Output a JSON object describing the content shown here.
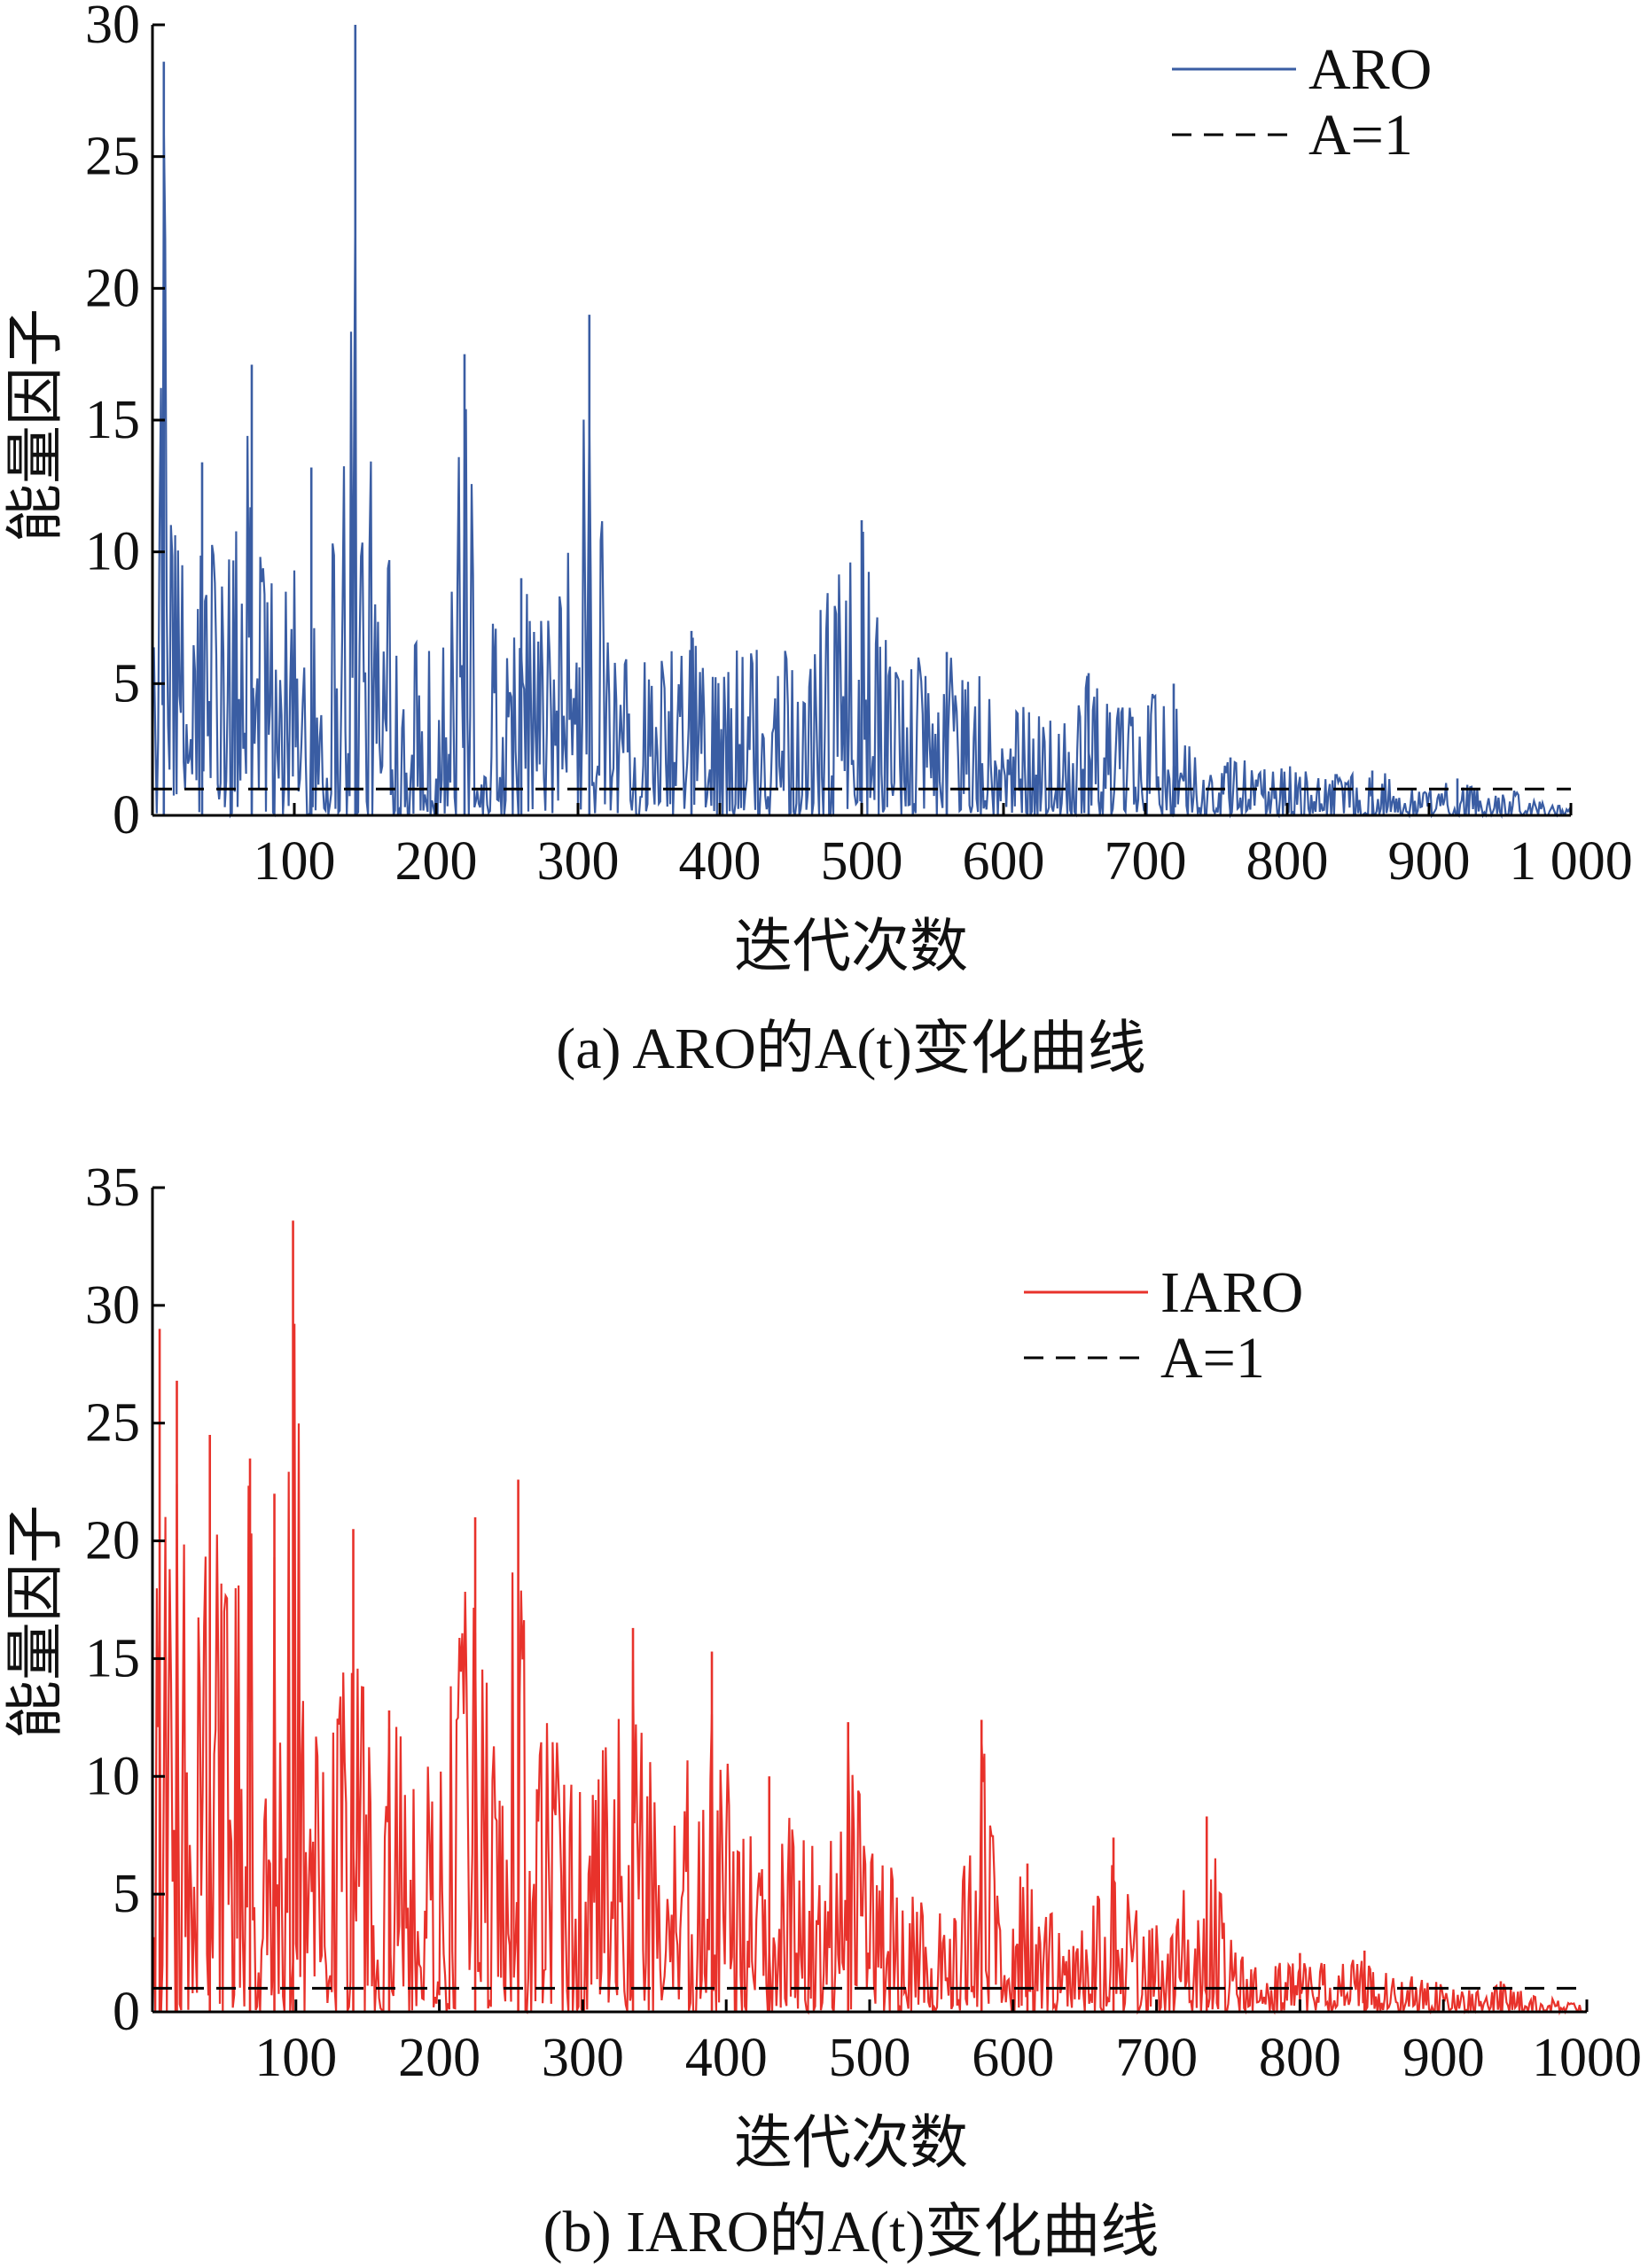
{
  "chart_data": [
    {
      "type": "line",
      "caption": "(a) ARO的A(t)变化曲线",
      "xlabel": "迭代次数",
      "ylabel": "能量因子",
      "xlim": [
        0,
        1000
      ],
      "ylim": [
        0,
        30
      ],
      "xticks": [
        100,
        200,
        300,
        400,
        500,
        600,
        700,
        800,
        900,
        1000
      ],
      "xtick_labels": [
        "100",
        "200",
        "300",
        "400",
        "500",
        "600",
        "700",
        "800",
        "900",
        "1 000"
      ],
      "yticks": [
        0,
        5,
        10,
        15,
        20,
        25,
        30
      ],
      "ytick_labels": [
        "0",
        "5",
        "10",
        "15",
        "20",
        "25",
        "30"
      ],
      "grid": false,
      "legend": "top-right",
      "series": [
        {
          "name": "ARO",
          "color": "#3a5da3",
          "style": "solid",
          "envelope": [
            [
              0,
              6
            ],
            [
              5,
              12
            ],
            [
              8,
              28.6
            ],
            [
              12,
              11.5
            ],
            [
              20,
              11
            ],
            [
              35,
              13.4
            ],
            [
              50,
              9
            ],
            [
              70,
              17.1
            ],
            [
              80,
              9.7
            ],
            [
              100,
              10
            ],
            [
              112,
              13.2
            ],
            [
              125,
              12.5
            ],
            [
              132,
              15.1
            ],
            [
              143,
              30
            ],
            [
              148,
              16.4
            ],
            [
              160,
              10.8
            ],
            [
              170,
              10.4
            ],
            [
              190,
              6.5
            ],
            [
              210,
              8.5
            ],
            [
              220,
              17.5
            ],
            [
              230,
              8
            ],
            [
              245,
              7.5
            ],
            [
              260,
              9
            ],
            [
              275,
              8
            ],
            [
              290,
              9
            ],
            [
              308,
              19
            ],
            [
              320,
              9
            ],
            [
              340,
              6.5
            ],
            [
              360,
              6
            ],
            [
              380,
              7
            ],
            [
              400,
              6.5
            ],
            [
              420,
              7
            ],
            [
              440,
              7
            ],
            [
              460,
              5
            ],
            [
              480,
              10.2
            ],
            [
              500,
              11.2
            ],
            [
              520,
              6
            ],
            [
              540,
              6
            ],
            [
              560,
              6.2
            ],
            [
              580,
              5.5
            ],
            [
              600,
              5.5
            ],
            [
              620,
              4
            ],
            [
              640,
              3.5
            ],
            [
              660,
              5.4
            ],
            [
              680,
              5
            ],
            [
              700,
              4.5
            ],
            [
              720,
              5
            ],
            [
              740,
              2
            ],
            [
              760,
              2.2
            ],
            [
              780,
              2
            ],
            [
              800,
              2
            ],
            [
              820,
              1.5
            ],
            [
              840,
              1.6
            ],
            [
              860,
              1.7
            ],
            [
              880,
              1.5
            ],
            [
              900,
              1
            ],
            [
              920,
              1.4
            ],
            [
              940,
              1
            ],
            [
              960,
              1
            ],
            [
              980,
              0.5
            ],
            [
              1000,
              0.3
            ]
          ]
        },
        {
          "name": "A=1",
          "color": "#000000",
          "style": "dashed",
          "y": 1
        }
      ]
    },
    {
      "type": "line",
      "caption": "(b) IARO的A(t)变化曲线",
      "xlabel": "迭代次数",
      "ylabel": "能量因子",
      "xlim": [
        0,
        1000
      ],
      "ylim": [
        0,
        35
      ],
      "xticks": [
        100,
        200,
        300,
        400,
        500,
        600,
        700,
        800,
        900,
        1000
      ],
      "xtick_labels": [
        "100",
        "200",
        "300",
        "400",
        "500",
        "600",
        "700",
        "800",
        "900",
        "1000"
      ],
      "yticks": [
        0,
        5,
        10,
        15,
        20,
        25,
        30,
        35
      ],
      "ytick_labels": [
        "0",
        "5",
        "10",
        "15",
        "20",
        "25",
        "30",
        "35"
      ],
      "grid": false,
      "legend": "top-right",
      "series": [
        {
          "name": "IARO",
          "color": "#e8322b",
          "style": "solid",
          "envelope": [
            [
              0,
              10
            ],
            [
              5,
              29
            ],
            [
              10,
              20
            ],
            [
              17,
              26.8
            ],
            [
              25,
              18
            ],
            [
              40,
              24.5
            ],
            [
              55,
              17
            ],
            [
              68,
              23.5
            ],
            [
              75,
              15
            ],
            [
              85,
              22
            ],
            [
              92,
              14
            ],
            [
              98,
              33.6
            ],
            [
              108,
              14
            ],
            [
              120,
              12
            ],
            [
              130,
              15.5
            ],
            [
              140,
              20.5
            ],
            [
              150,
              12
            ],
            [
              165,
              12.8
            ],
            [
              180,
              11
            ],
            [
              200,
              11
            ],
            [
              225,
              21
            ],
            [
              240,
              12
            ],
            [
              255,
              22.6
            ],
            [
              270,
              18.5
            ],
            [
              285,
              10
            ],
            [
              300,
              10.5
            ],
            [
              320,
              12
            ],
            [
              335,
              16.3
            ],
            [
              345,
              12
            ],
            [
              360,
              9
            ],
            [
              390,
              15.3
            ],
            [
              410,
              8
            ],
            [
              430,
              10
            ],
            [
              450,
              8
            ],
            [
              470,
              7
            ],
            [
              485,
              12.3
            ],
            [
              500,
              7
            ],
            [
              520,
              6
            ],
            [
              540,
              4.5
            ],
            [
              560,
              4
            ],
            [
              578,
              12.4
            ],
            [
              590,
              5
            ],
            [
              610,
              6.3
            ],
            [
              630,
              4
            ],
            [
              650,
              3.5
            ],
            [
              670,
              7.4
            ],
            [
              690,
              4
            ],
            [
              710,
              3.5
            ],
            [
              735,
              8.3
            ],
            [
              745,
              5.8
            ],
            [
              760,
              2.5
            ],
            [
              780,
              2
            ],
            [
              800,
              2.5
            ],
            [
              820,
              2
            ],
            [
              845,
              2.6
            ],
            [
              860,
              1.8
            ],
            [
              880,
              1.5
            ],
            [
              900,
              1.2
            ],
            [
              920,
              1
            ],
            [
              940,
              1.3
            ],
            [
              960,
              0.8
            ],
            [
              980,
              0.5
            ],
            [
              1000,
              0.3
            ]
          ]
        },
        {
          "name": "A=1",
          "color": "#000000",
          "style": "dashed",
          "y": 1
        }
      ]
    }
  ]
}
